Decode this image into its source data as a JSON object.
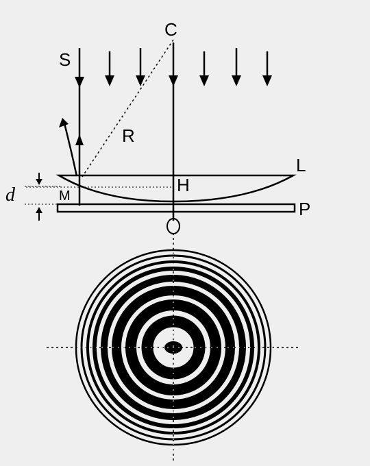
{
  "labels": {
    "center": "C",
    "source": "S",
    "radius": "R",
    "lens": "L",
    "point_h": "H",
    "point_m": "M",
    "thickness": "d",
    "plate": "P",
    "origin": "O"
  },
  "colors": {
    "ink": "#000000",
    "background": "#efefef"
  }
}
